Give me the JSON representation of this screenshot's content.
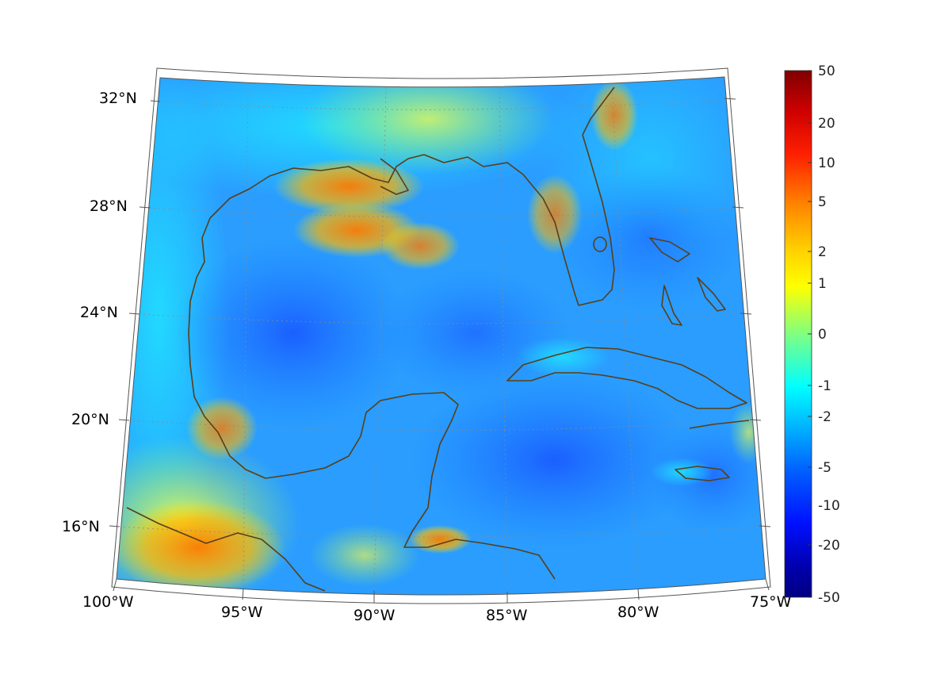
{
  "map": {
    "projection": "lambert-conic",
    "lon_ticks": [
      "100°W",
      "95°W",
      "90°W",
      "85°W",
      "80°W",
      "75°W"
    ],
    "lat_ticks": [
      "16°N",
      "20°N",
      "24°N",
      "28°N",
      "32°N"
    ],
    "extent": {
      "lon_min": -100,
      "lon_max": -75,
      "lat_min": 14.5,
      "lat_max": 33
    },
    "field_colormap": "jet",
    "coastline_color": "#5b3e16",
    "gridlines": "dotted"
  },
  "colorbar": {
    "ticks": [
      "50",
      "20",
      "10",
      "5",
      "2",
      "1",
      "0",
      "-1",
      "-2",
      "-5",
      "-10",
      "-20",
      "-50"
    ],
    "scale": "symmetric-log",
    "colors_top_to_bottom": [
      "#800000",
      "#ff0000",
      "#ff8000",
      "#ffd000",
      "#ffff00",
      "#80ff80",
      "#00ffff",
      "#00a0ff",
      "#0040ff",
      "#0000c0",
      "#000080"
    ]
  }
}
